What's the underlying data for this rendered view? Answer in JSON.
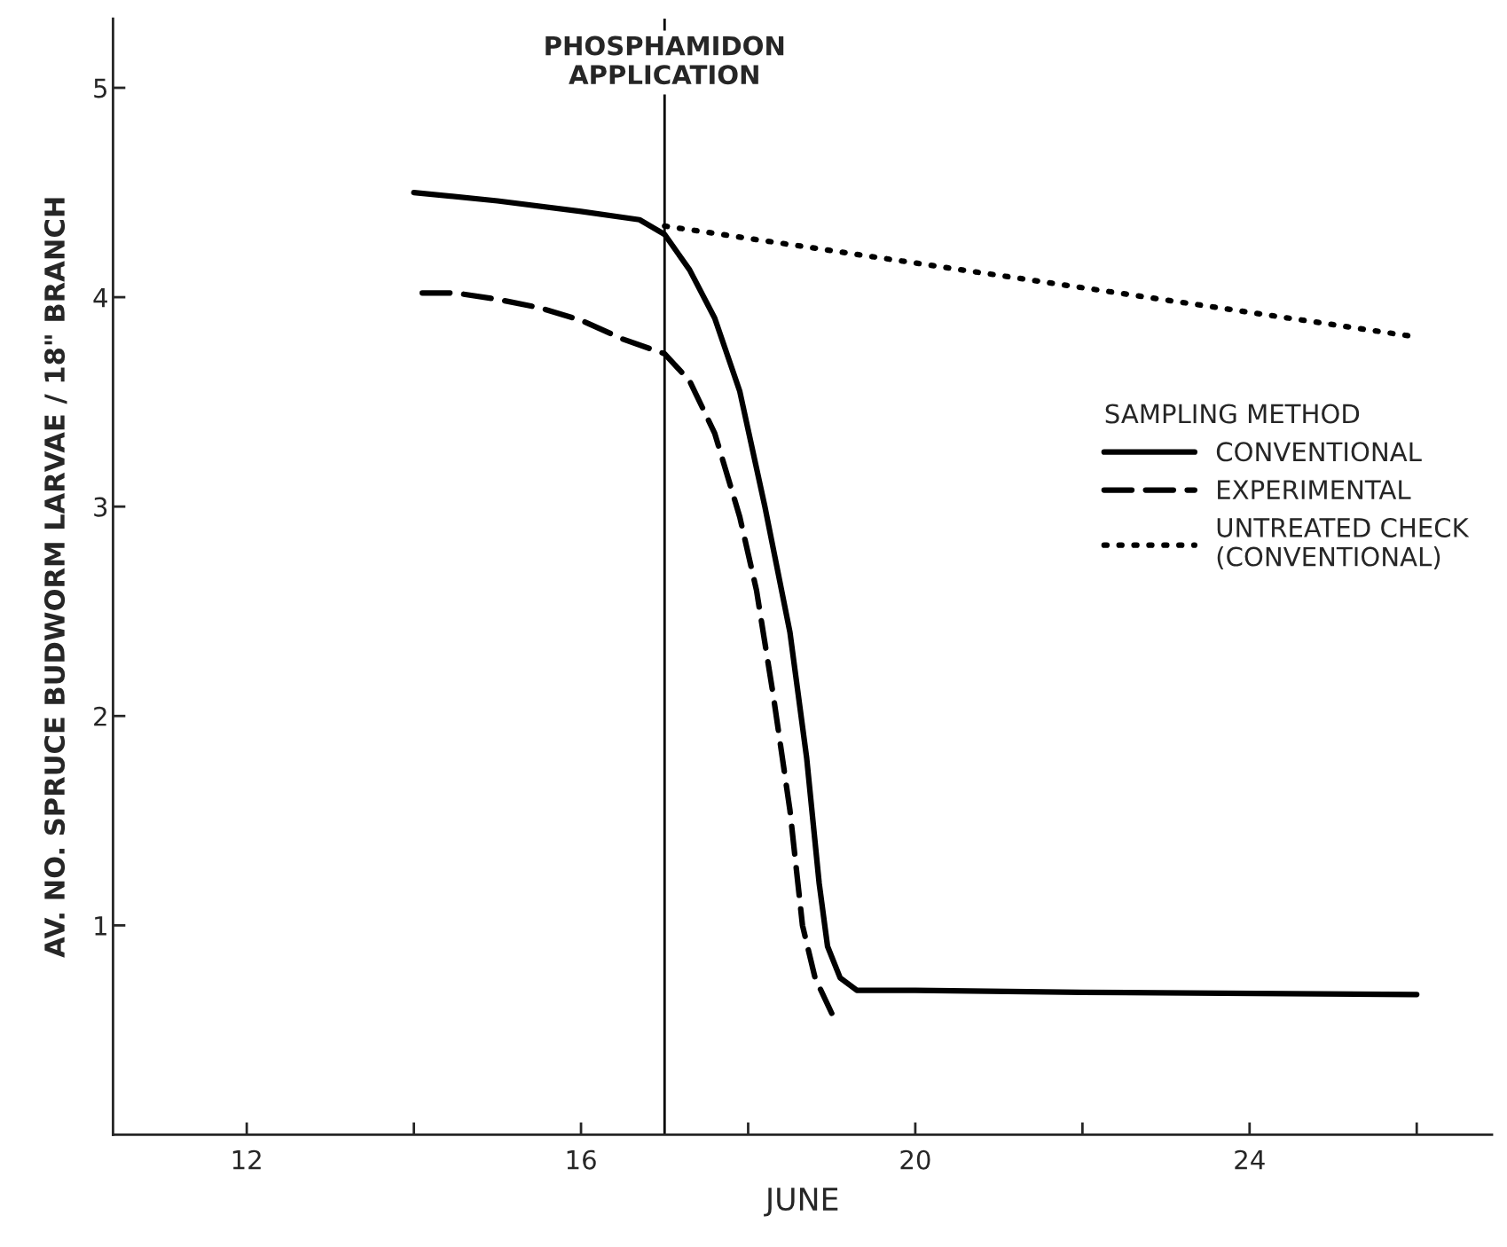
{
  "chart_data": {
    "type": "line",
    "xlabel": "JUNE",
    "ylabel": "AV. NO. SPRUCE BUDWORM LARVAE / 18\" BRANCH",
    "legend_title": "SAMPLING METHOD",
    "legend": "right",
    "grid": false,
    "marker": "none",
    "xlim": [
      10.4,
      26.9
    ],
    "xticks": [
      12,
      {
        "value": 14,
        "label": null
      },
      16,
      {
        "value": 18,
        "label": null
      },
      20,
      {
        "value": 22,
        "label": null
      },
      24,
      {
        "value": 26,
        "label": null
      }
    ],
    "ylim": [
      0,
      5.33
    ],
    "yticks": [
      1,
      2,
      3,
      4,
      5
    ],
    "ref_lines": [
      {
        "axis": "x",
        "value": 17,
        "label": "PHOSPHAMIDON\nAPPLICATION",
        "color": "#000000",
        "line_style": "solid"
      }
    ],
    "series": [
      {
        "name": "CONVENTIONAL",
        "color": "#000000",
        "line_style": "solid",
        "x": [
          14,
          15,
          16,
          16.7,
          17,
          17.3,
          17.6,
          17.9,
          18.2,
          18.5,
          18.7,
          18.85,
          18.95,
          19.1,
          19.3,
          20,
          22,
          26
        ],
        "values": [
          4.5,
          4.46,
          4.41,
          4.37,
          4.3,
          4.13,
          3.9,
          3.55,
          3.0,
          2.4,
          1.8,
          1.2,
          0.9,
          0.75,
          0.69,
          0.69,
          0.68,
          0.67
        ]
      },
      {
        "name": "EXPERIMENTAL",
        "color": "#000000",
        "line_style": "dashed",
        "x": [
          14.1,
          14.5,
          15,
          15.5,
          16,
          16.5,
          17,
          17.3,
          17.6,
          17.9,
          18.1,
          18.3,
          18.5,
          18.65,
          18.8,
          19.0
        ],
        "values": [
          4.02,
          4.02,
          3.99,
          3.95,
          3.89,
          3.8,
          3.73,
          3.6,
          3.35,
          2.95,
          2.6,
          2.1,
          1.55,
          1.0,
          0.75,
          0.58
        ]
      },
      {
        "name": "UNTREATED CHECK\n(CONVENTIONAL)",
        "color": "#000000",
        "line_style": "dotted",
        "x": [
          17,
          26
        ],
        "values": [
          4.34,
          3.81
        ]
      }
    ]
  }
}
